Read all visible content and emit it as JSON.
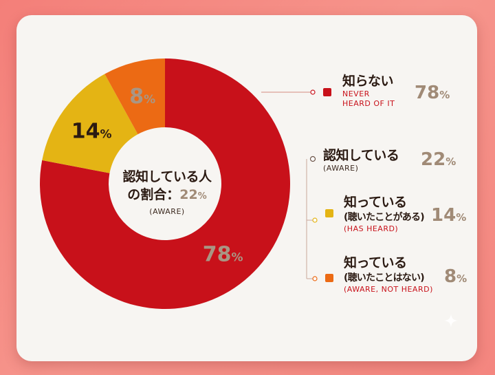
{
  "center": {
    "line1": "認知している人",
    "line2_prefix": "の割合：",
    "line2_value": "22",
    "line2_unit": "%",
    "line3": "(AWARE)"
  },
  "legend": {
    "never": {
      "title": "知らない",
      "en1": "NEVER",
      "en2": "HEARD OF IT",
      "pct": "78",
      "unit": "%"
    },
    "aware": {
      "title": "認知している",
      "en": "(AWARE)",
      "pct": "22",
      "unit": "%"
    },
    "heard": {
      "title": "知っている",
      "sub": "(聴いたことがある)",
      "en": "(HAS HEARD)",
      "pct": "14",
      "unit": "%"
    },
    "notheard": {
      "title": "知っている",
      "sub": "(聴いたことはない)",
      "en": "(AWARE, NOT HEARD)",
      "pct": "8",
      "unit": "%"
    }
  },
  "chart_data": {
    "type": "pie",
    "categories": [
      "知らない NEVER HEARD OF IT",
      "知っている (聴いたことがある) (HAS HEARD)",
      "知っている (聴いたことはない) (AWARE, NOT HEARD)"
    ],
    "values": [
      78,
      14,
      8
    ],
    "data_labels": [
      "78",
      "14",
      "8"
    ],
    "unit": "%",
    "colors": [
      "#c8111a",
      "#e4b414",
      "#ec6a14"
    ],
    "label_colors": [
      "#a99684",
      "#2b1a12",
      "#a99684"
    ],
    "donut": true
  }
}
